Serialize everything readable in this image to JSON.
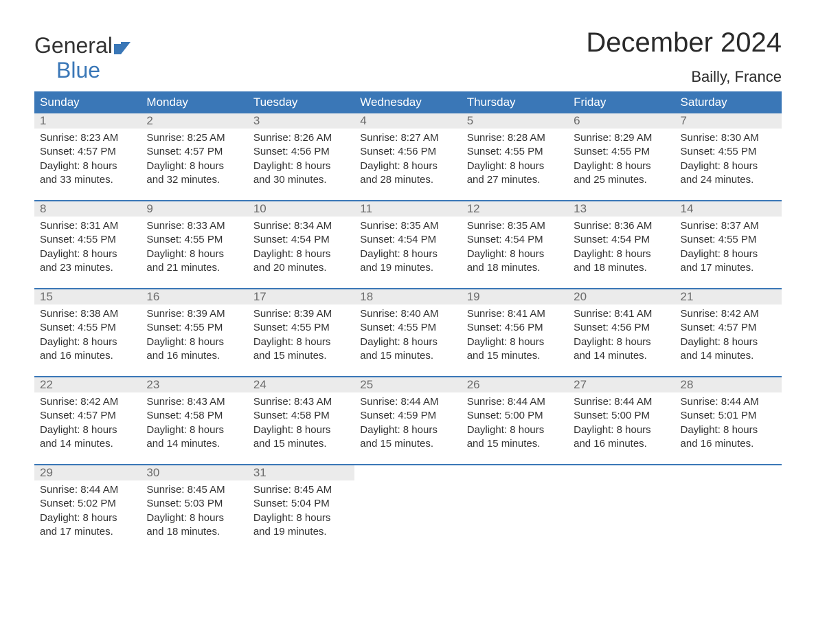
{
  "logo": {
    "word1": "General",
    "word2": "Blue"
  },
  "title": "December 2024",
  "location": "Bailly, France",
  "colors": {
    "header_bg": "#3a77b7",
    "header_text": "#ffffff",
    "daynum_bg": "#ebebeb",
    "daynum_text": "#6b6b6b",
    "body_text": "#333333",
    "week_border": "#3a77b7",
    "page_bg": "#ffffff",
    "logo_blue": "#3a77b7"
  },
  "weekdays": [
    "Sunday",
    "Monday",
    "Tuesday",
    "Wednesday",
    "Thursday",
    "Friday",
    "Saturday"
  ],
  "weeks": [
    [
      {
        "n": "1",
        "sunrise": "Sunrise: 8:23 AM",
        "sunset": "Sunset: 4:57 PM",
        "d1": "Daylight: 8 hours",
        "d2": "and 33 minutes."
      },
      {
        "n": "2",
        "sunrise": "Sunrise: 8:25 AM",
        "sunset": "Sunset: 4:57 PM",
        "d1": "Daylight: 8 hours",
        "d2": "and 32 minutes."
      },
      {
        "n": "3",
        "sunrise": "Sunrise: 8:26 AM",
        "sunset": "Sunset: 4:56 PM",
        "d1": "Daylight: 8 hours",
        "d2": "and 30 minutes."
      },
      {
        "n": "4",
        "sunrise": "Sunrise: 8:27 AM",
        "sunset": "Sunset: 4:56 PM",
        "d1": "Daylight: 8 hours",
        "d2": "and 28 minutes."
      },
      {
        "n": "5",
        "sunrise": "Sunrise: 8:28 AM",
        "sunset": "Sunset: 4:55 PM",
        "d1": "Daylight: 8 hours",
        "d2": "and 27 minutes."
      },
      {
        "n": "6",
        "sunrise": "Sunrise: 8:29 AM",
        "sunset": "Sunset: 4:55 PM",
        "d1": "Daylight: 8 hours",
        "d2": "and 25 minutes."
      },
      {
        "n": "7",
        "sunrise": "Sunrise: 8:30 AM",
        "sunset": "Sunset: 4:55 PM",
        "d1": "Daylight: 8 hours",
        "d2": "and 24 minutes."
      }
    ],
    [
      {
        "n": "8",
        "sunrise": "Sunrise: 8:31 AM",
        "sunset": "Sunset: 4:55 PM",
        "d1": "Daylight: 8 hours",
        "d2": "and 23 minutes."
      },
      {
        "n": "9",
        "sunrise": "Sunrise: 8:33 AM",
        "sunset": "Sunset: 4:55 PM",
        "d1": "Daylight: 8 hours",
        "d2": "and 21 minutes."
      },
      {
        "n": "10",
        "sunrise": "Sunrise: 8:34 AM",
        "sunset": "Sunset: 4:54 PM",
        "d1": "Daylight: 8 hours",
        "d2": "and 20 minutes."
      },
      {
        "n": "11",
        "sunrise": "Sunrise: 8:35 AM",
        "sunset": "Sunset: 4:54 PM",
        "d1": "Daylight: 8 hours",
        "d2": "and 19 minutes."
      },
      {
        "n": "12",
        "sunrise": "Sunrise: 8:35 AM",
        "sunset": "Sunset: 4:54 PM",
        "d1": "Daylight: 8 hours",
        "d2": "and 18 minutes."
      },
      {
        "n": "13",
        "sunrise": "Sunrise: 8:36 AM",
        "sunset": "Sunset: 4:54 PM",
        "d1": "Daylight: 8 hours",
        "d2": "and 18 minutes."
      },
      {
        "n": "14",
        "sunrise": "Sunrise: 8:37 AM",
        "sunset": "Sunset: 4:55 PM",
        "d1": "Daylight: 8 hours",
        "d2": "and 17 minutes."
      }
    ],
    [
      {
        "n": "15",
        "sunrise": "Sunrise: 8:38 AM",
        "sunset": "Sunset: 4:55 PM",
        "d1": "Daylight: 8 hours",
        "d2": "and 16 minutes."
      },
      {
        "n": "16",
        "sunrise": "Sunrise: 8:39 AM",
        "sunset": "Sunset: 4:55 PM",
        "d1": "Daylight: 8 hours",
        "d2": "and 16 minutes."
      },
      {
        "n": "17",
        "sunrise": "Sunrise: 8:39 AM",
        "sunset": "Sunset: 4:55 PM",
        "d1": "Daylight: 8 hours",
        "d2": "and 15 minutes."
      },
      {
        "n": "18",
        "sunrise": "Sunrise: 8:40 AM",
        "sunset": "Sunset: 4:55 PM",
        "d1": "Daylight: 8 hours",
        "d2": "and 15 minutes."
      },
      {
        "n": "19",
        "sunrise": "Sunrise: 8:41 AM",
        "sunset": "Sunset: 4:56 PM",
        "d1": "Daylight: 8 hours",
        "d2": "and 15 minutes."
      },
      {
        "n": "20",
        "sunrise": "Sunrise: 8:41 AM",
        "sunset": "Sunset: 4:56 PM",
        "d1": "Daylight: 8 hours",
        "d2": "and 14 minutes."
      },
      {
        "n": "21",
        "sunrise": "Sunrise: 8:42 AM",
        "sunset": "Sunset: 4:57 PM",
        "d1": "Daylight: 8 hours",
        "d2": "and 14 minutes."
      }
    ],
    [
      {
        "n": "22",
        "sunrise": "Sunrise: 8:42 AM",
        "sunset": "Sunset: 4:57 PM",
        "d1": "Daylight: 8 hours",
        "d2": "and 14 minutes."
      },
      {
        "n": "23",
        "sunrise": "Sunrise: 8:43 AM",
        "sunset": "Sunset: 4:58 PM",
        "d1": "Daylight: 8 hours",
        "d2": "and 14 minutes."
      },
      {
        "n": "24",
        "sunrise": "Sunrise: 8:43 AM",
        "sunset": "Sunset: 4:58 PM",
        "d1": "Daylight: 8 hours",
        "d2": "and 15 minutes."
      },
      {
        "n": "25",
        "sunrise": "Sunrise: 8:44 AM",
        "sunset": "Sunset: 4:59 PM",
        "d1": "Daylight: 8 hours",
        "d2": "and 15 minutes."
      },
      {
        "n": "26",
        "sunrise": "Sunrise: 8:44 AM",
        "sunset": "Sunset: 5:00 PM",
        "d1": "Daylight: 8 hours",
        "d2": "and 15 minutes."
      },
      {
        "n": "27",
        "sunrise": "Sunrise: 8:44 AM",
        "sunset": "Sunset: 5:00 PM",
        "d1": "Daylight: 8 hours",
        "d2": "and 16 minutes."
      },
      {
        "n": "28",
        "sunrise": "Sunrise: 8:44 AM",
        "sunset": "Sunset: 5:01 PM",
        "d1": "Daylight: 8 hours",
        "d2": "and 16 minutes."
      }
    ],
    [
      {
        "n": "29",
        "sunrise": "Sunrise: 8:44 AM",
        "sunset": "Sunset: 5:02 PM",
        "d1": "Daylight: 8 hours",
        "d2": "and 17 minutes."
      },
      {
        "n": "30",
        "sunrise": "Sunrise: 8:45 AM",
        "sunset": "Sunset: 5:03 PM",
        "d1": "Daylight: 8 hours",
        "d2": "and 18 minutes."
      },
      {
        "n": "31",
        "sunrise": "Sunrise: 8:45 AM",
        "sunset": "Sunset: 5:04 PM",
        "d1": "Daylight: 8 hours",
        "d2": "and 19 minutes."
      },
      null,
      null,
      null,
      null
    ]
  ]
}
